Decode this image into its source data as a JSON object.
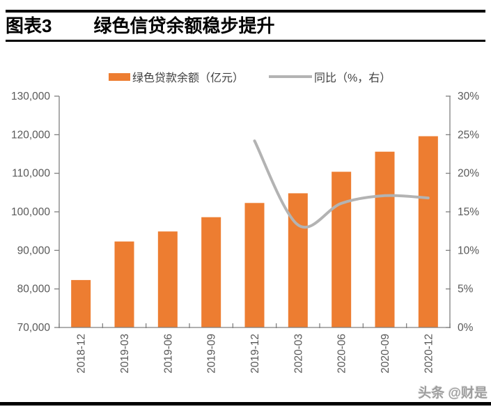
{
  "header": {
    "index": "图表3",
    "title": "绿色信贷余额稳步提升"
  },
  "legend": {
    "bar_label": "绿色贷款余额（亿元）",
    "line_label": "同比（%，右）"
  },
  "watermark": "头条 @财是",
  "colors": {
    "bar": "#ED7D31",
    "line": "#B3B3B3",
    "axis": "#808080",
    "axis_text": "#595959"
  },
  "chart_data": {
    "type": "bar",
    "title": "绿色信贷余额稳步提升",
    "categories": [
      "2018-12",
      "2019-03",
      "2019-06",
      "2019-09",
      "2019-12",
      "2020-03",
      "2020-06",
      "2020-09",
      "2020-12"
    ],
    "series": [
      {
        "name": "绿色贷款余额（亿元）",
        "type": "bar",
        "axis": "left",
        "values": [
          82300,
          92300,
          94900,
          98600,
          102300,
          104800,
          110400,
          115600,
          119600
        ]
      },
      {
        "name": "同比（%，右）",
        "type": "line",
        "axis": "right",
        "values": [
          null,
          null,
          null,
          null,
          24.2,
          13.3,
          16.1,
          17.1,
          16.8
        ]
      }
    ],
    "left_axis": {
      "min": 70000,
      "max": 130000,
      "step": 10000,
      "tick_labels": [
        "130,000",
        "120,000",
        "110,000",
        "100,000",
        "90,000",
        "80,000",
        "70,000"
      ]
    },
    "right_axis": {
      "min": 0,
      "max": 30,
      "step": 5,
      "tick_labels": [
        "30%",
        "25%",
        "20%",
        "15%",
        "10%",
        "5%",
        "0%"
      ]
    },
    "grid": false,
    "legend_position": "top"
  }
}
